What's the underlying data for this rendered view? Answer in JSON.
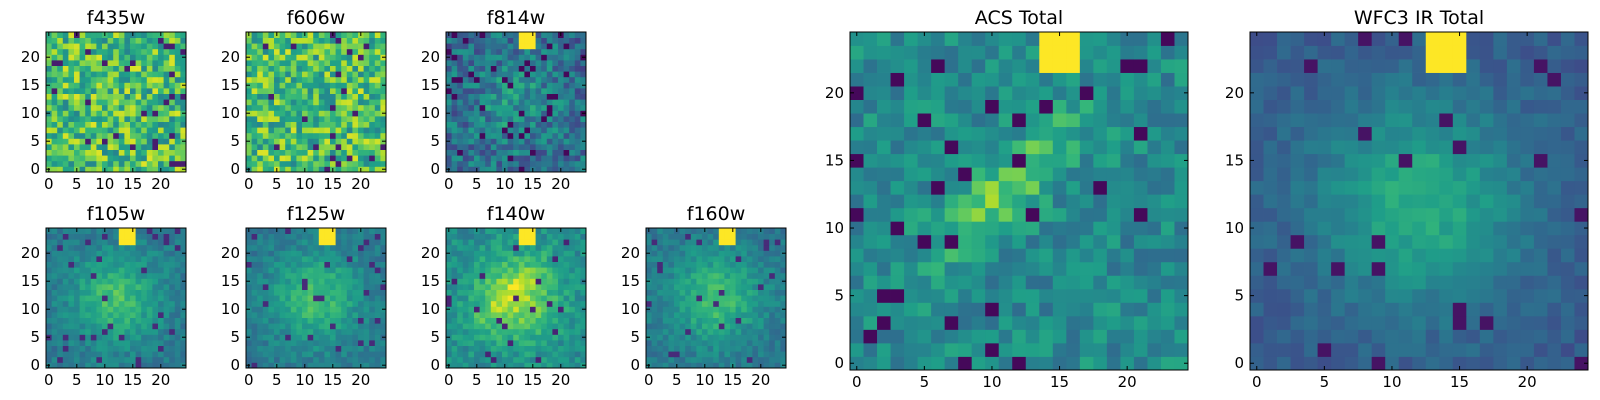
{
  "chart_data": [
    {
      "type": "heatmap",
      "title": "f435w",
      "xticks": [
        "0",
        "5",
        "10",
        "15",
        "20"
      ],
      "yticks": [
        "0",
        "5",
        "10",
        "15",
        "20"
      ],
      "xlim": [
        -0.5,
        24.5
      ],
      "ylim": [
        -0.5,
        24.5
      ],
      "grid_size": 25,
      "colormap": "viridis",
      "pattern": "noise_high"
    },
    {
      "type": "heatmap",
      "title": "f606w",
      "xticks": [
        "0",
        "5",
        "10",
        "15",
        "20"
      ],
      "yticks": [
        "0",
        "5",
        "10",
        "15",
        "20"
      ],
      "xlim": [
        -0.5,
        24.5
      ],
      "ylim": [
        -0.5,
        24.5
      ],
      "grid_size": 25,
      "colormap": "viridis",
      "pattern": "noise_high"
    },
    {
      "type": "heatmap",
      "title": "f814w",
      "xticks": [
        "0",
        "5",
        "10",
        "15",
        "20"
      ],
      "yticks": [
        "0",
        "5",
        "10",
        "15",
        "20"
      ],
      "xlim": [
        -0.5,
        24.5
      ],
      "ylim": [
        -0.5,
        24.5
      ],
      "grid_size": 25,
      "colormap": "viridis",
      "pattern": "noise_low",
      "bright_source": [
        14,
        23
      ]
    },
    {
      "type": "heatmap",
      "title": "f105w",
      "xticks": [
        "0",
        "5",
        "10",
        "15",
        "20"
      ],
      "yticks": [
        "0",
        "5",
        "10",
        "15",
        "20"
      ],
      "xlim": [
        -0.5,
        24.5
      ],
      "ylim": [
        -0.5,
        24.5
      ],
      "grid_size": 25,
      "colormap": "viridis",
      "pattern": "ir",
      "bright_source": [
        14,
        23
      ]
    },
    {
      "type": "heatmap",
      "title": "f125w",
      "xticks": [
        "0",
        "5",
        "10",
        "15",
        "20"
      ],
      "yticks": [
        "0",
        "5",
        "10",
        "15",
        "20"
      ],
      "xlim": [
        -0.5,
        24.5
      ],
      "ylim": [
        -0.5,
        24.5
      ],
      "grid_size": 25,
      "colormap": "viridis",
      "pattern": "ir",
      "bright_source": [
        14,
        23
      ]
    },
    {
      "type": "heatmap",
      "title": "f140w",
      "xticks": [
        "0",
        "5",
        "10",
        "15",
        "20"
      ],
      "yticks": [
        "0",
        "5",
        "10",
        "15",
        "20"
      ],
      "xlim": [
        -0.5,
        24.5
      ],
      "ylim": [
        -0.5,
        24.5
      ],
      "grid_size": 25,
      "colormap": "viridis",
      "pattern": "ir_bright",
      "bright_source": [
        14,
        23
      ]
    },
    {
      "type": "heatmap",
      "title": "f160w",
      "xticks": [
        "0",
        "5",
        "10",
        "15",
        "20"
      ],
      "yticks": [
        "0",
        "5",
        "10",
        "15",
        "20"
      ],
      "xlim": [
        -0.5,
        24.5
      ],
      "ylim": [
        -0.5,
        24.5
      ],
      "grid_size": 25,
      "colormap": "viridis",
      "pattern": "ir",
      "bright_source": [
        14,
        23
      ]
    },
    {
      "type": "heatmap",
      "title": "ACS Total",
      "xticks": [
        "0",
        "5",
        "10",
        "15",
        "20"
      ],
      "yticks": [
        "0",
        "5",
        "10",
        "15",
        "20"
      ],
      "xlim": [
        -0.5,
        24.5
      ],
      "ylim": [
        -0.5,
        24.5
      ],
      "grid_size": 25,
      "colormap": "viridis",
      "pattern": "acs_total",
      "bright_source": [
        15,
        23
      ]
    },
    {
      "type": "heatmap",
      "title": "WFC3 IR Total",
      "xticks": [
        "0",
        "5",
        "10",
        "15",
        "20"
      ],
      "yticks": [
        "0",
        "5",
        "10",
        "15",
        "20"
      ],
      "xlim": [
        -0.5,
        24.5
      ],
      "ylim": [
        -0.5,
        24.5
      ],
      "grid_size": 25,
      "colormap": "viridis",
      "pattern": "ir_total",
      "bright_source": [
        14,
        23
      ]
    }
  ]
}
